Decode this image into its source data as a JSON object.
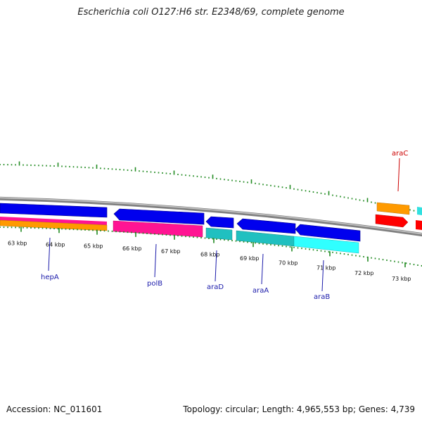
{
  "title": "Escherichia coli O127:H6 str. E2348/69, complete genome",
  "footer": {
    "accession": "Accession: NC_011601",
    "summary": "Topology: circular; Length: 4,965,553 bp; Genes: 4,739"
  },
  "scale_labels": [
    "63 kbp",
    "64 kbp",
    "65 kbp",
    "66 kbp",
    "67 kbp",
    "68 kbp",
    "69 kbp",
    "70 kbp",
    "71 kbp",
    "72 kbp",
    "73 kbp"
  ],
  "gene_labels": [
    {
      "name": "hepA",
      "color": "#1a1aaa"
    },
    {
      "name": "polB",
      "color": "#1a1aaa"
    },
    {
      "name": "araD",
      "color": "#1a1aaa"
    },
    {
      "name": "araA",
      "color": "#1a1aaa"
    },
    {
      "name": "araB",
      "color": "#1a1aaa"
    },
    {
      "name": "araC",
      "color": "#cc0000"
    }
  ],
  "colors": {
    "backbone": "#808080",
    "forward_cds": "#0000ee",
    "reverse_cds": "#ff0000",
    "orange_track": "#ff9a00",
    "pink_track": "#ff1493",
    "cyan_track": "#00c0c0",
    "ticks": "#228b22"
  }
}
